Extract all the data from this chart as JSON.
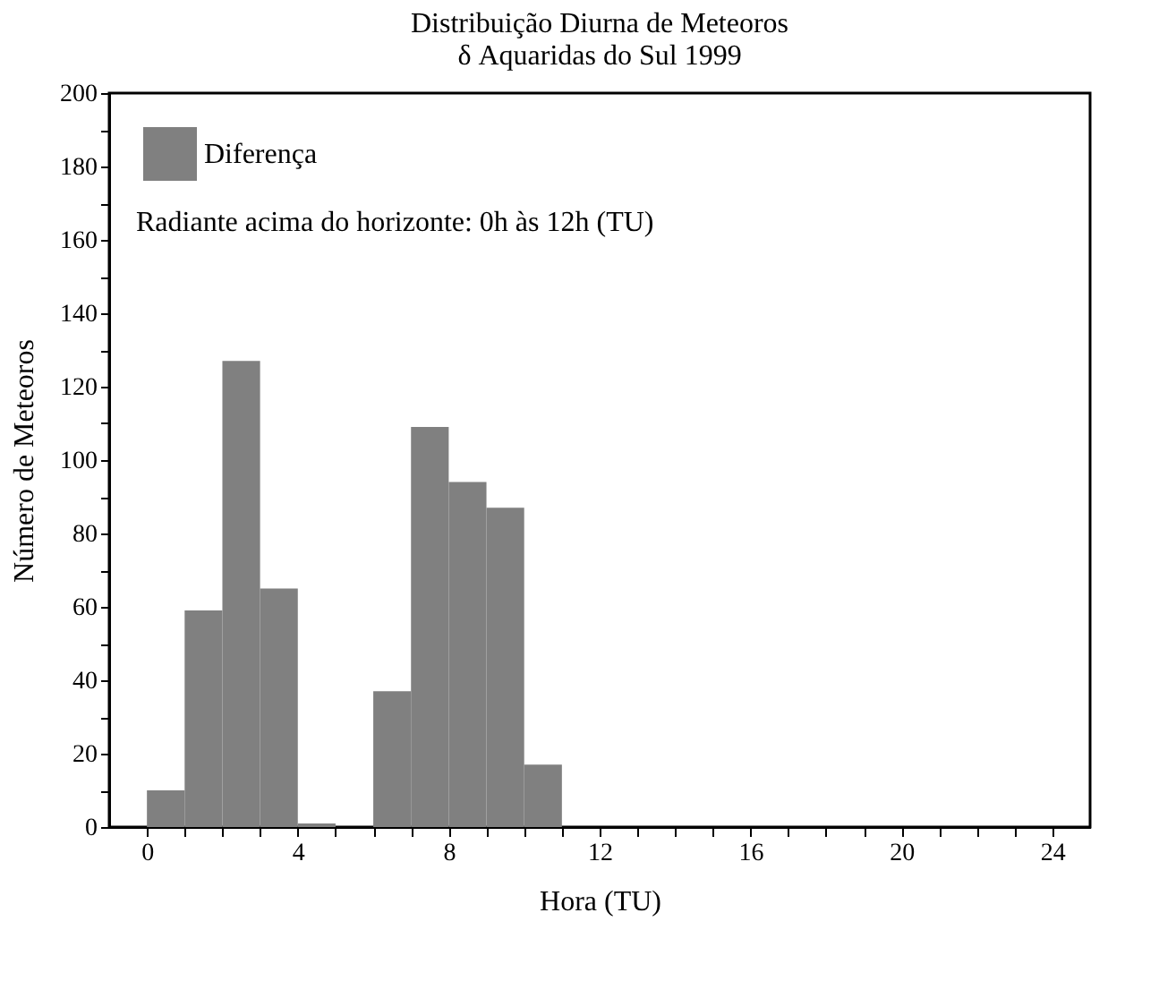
{
  "chart_data": {
    "type": "histogram",
    "title": "Distribuição Diurna de Meteoros",
    "subtitle": "δ Aquaridas do Sul 1999",
    "xlabel": "Hora (TU)",
    "ylabel": "Número de Meteoros",
    "bins": [
      0,
      1,
      2,
      3,
      4,
      5,
      6,
      7,
      8,
      9,
      10,
      11
    ],
    "series": [
      {
        "name": "Diferença",
        "color": "#808080",
        "values": [
          10,
          59,
          127,
          65,
          1,
          0,
          37,
          109,
          94,
          87,
          17
        ]
      }
    ],
    "annotations": [
      "Radiante acima do horizonte: 0h às 12h (TU)"
    ],
    "xlim": [
      -1,
      25
    ],
    "xticks": [
      0,
      {
        "value": 1,
        "label": null
      },
      {
        "value": 2,
        "label": null
      },
      {
        "value": 3,
        "label": null
      },
      4,
      {
        "value": 5,
        "label": null
      },
      {
        "value": 6,
        "label": null
      },
      {
        "value": 7,
        "label": null
      },
      8,
      {
        "value": 9,
        "label": null
      },
      {
        "value": 10,
        "label": null
      },
      {
        "value": 11,
        "label": null
      },
      12,
      {
        "value": 13,
        "label": null
      },
      {
        "value": 14,
        "label": null
      },
      {
        "value": 15,
        "label": null
      },
      16,
      {
        "value": 17,
        "label": null
      },
      {
        "value": 18,
        "label": null
      },
      {
        "value": 19,
        "label": null
      },
      20,
      {
        "value": 21,
        "label": null
      },
      {
        "value": 22,
        "label": null
      },
      {
        "value": 23,
        "label": null
      },
      24
    ],
    "ylim": [
      0,
      200
    ],
    "yticks": [
      0,
      {
        "value": 10,
        "label": null
      },
      20,
      {
        "value": 30,
        "label": null
      },
      40,
      {
        "value": 50,
        "label": null
      },
      60,
      {
        "value": 70,
        "label": null
      },
      80,
      {
        "value": 90,
        "label": null
      },
      100,
      {
        "value": 110,
        "label": null
      },
      120,
      {
        "value": 130,
        "label": null
      },
      140,
      {
        "value": 150,
        "label": null
      },
      160,
      {
        "value": 170,
        "label": null
      },
      180,
      {
        "value": 190,
        "label": null
      },
      200
    ],
    "legend": "top left",
    "grid": false
  }
}
